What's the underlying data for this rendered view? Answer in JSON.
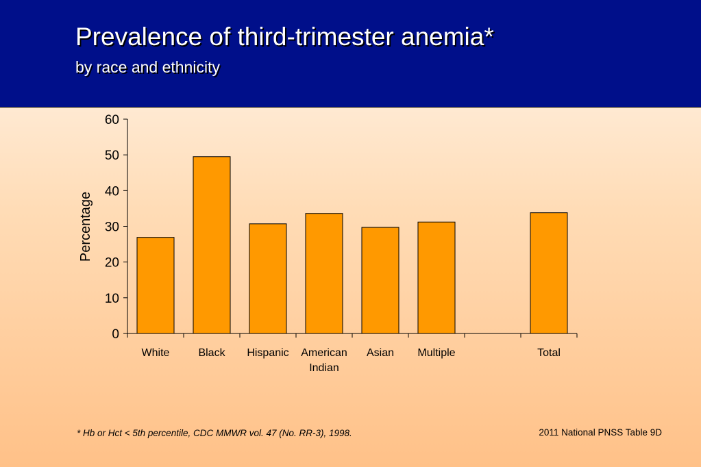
{
  "header": {
    "title": "Prevalence of third-trimester anemia*",
    "subtitle": "by race and ethnicity"
  },
  "footer": {
    "footnote": "*  Hb or Hct < 5th percentile, CDC MMWR vol. 47 (No. RR-3), 1998.",
    "source": "2011 National PNSS Table 9D"
  },
  "chart_data": {
    "type": "bar",
    "title": "",
    "xlabel": "",
    "ylabel": "Percentage",
    "ylim": [
      0,
      60
    ],
    "yticks": [
      0,
      10,
      20,
      30,
      40,
      50,
      60
    ],
    "categories": [
      [
        "White"
      ],
      [
        "Black"
      ],
      [
        "Hispanic"
      ],
      [
        "American",
        "Indian"
      ],
      [
        "Asian"
      ],
      [
        "Multiple"
      ],
      [
        ""
      ],
      [
        "Total"
      ]
    ],
    "series": [
      {
        "values": [
          26.9,
          49.5,
          30.7,
          33.6,
          29.7,
          31.2,
          null,
          33.8
        ]
      }
    ],
    "colors": {
      "bar": "#ff9900",
      "bar_border": "#000000"
    },
    "grid": false,
    "legend": "none"
  }
}
